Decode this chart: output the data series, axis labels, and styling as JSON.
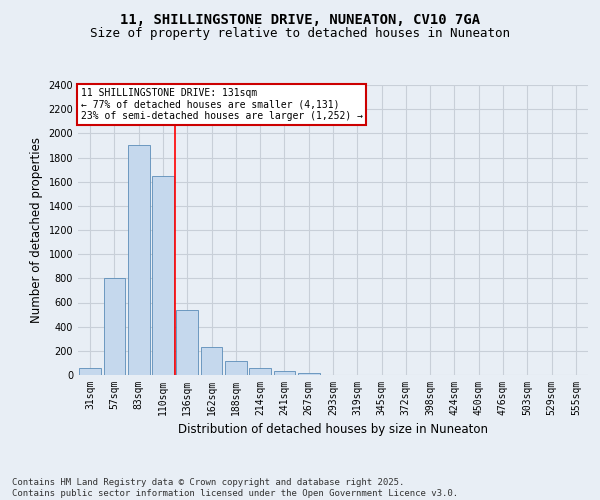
{
  "title_line1": "11, SHILLINGSTONE DRIVE, NUNEATON, CV10 7GA",
  "title_line2": "Size of property relative to detached houses in Nuneaton",
  "xlabel": "Distribution of detached houses by size in Nuneaton",
  "ylabel": "Number of detached properties",
  "footnote": "Contains HM Land Registry data © Crown copyright and database right 2025.\nContains public sector information licensed under the Open Government Licence v3.0.",
  "categories": [
    "31sqm",
    "57sqm",
    "83sqm",
    "110sqm",
    "136sqm",
    "162sqm",
    "188sqm",
    "214sqm",
    "241sqm",
    "267sqm",
    "293sqm",
    "319sqm",
    "345sqm",
    "372sqm",
    "398sqm",
    "424sqm",
    "450sqm",
    "476sqm",
    "503sqm",
    "529sqm",
    "555sqm"
  ],
  "values": [
    55,
    800,
    1900,
    1650,
    540,
    235,
    115,
    60,
    30,
    20,
    0,
    0,
    0,
    0,
    0,
    0,
    0,
    0,
    0,
    0,
    0
  ],
  "bar_color": "#c5d8ed",
  "bar_edge_color": "#5b8db8",
  "red_line_x": 3.5,
  "annotation_title": "11 SHILLINGSTONE DRIVE: 131sqm",
  "annotation_line2": "← 77% of detached houses are smaller (4,131)",
  "annotation_line3": "23% of semi-detached houses are larger (1,252) →",
  "annotation_box_color": "#ffffff",
  "annotation_box_edge": "#cc0000",
  "ylim": [
    0,
    2400
  ],
  "yticks": [
    0,
    200,
    400,
    600,
    800,
    1000,
    1200,
    1400,
    1600,
    1800,
    2000,
    2200,
    2400
  ],
  "grid_color": "#c8cfd8",
  "bg_color": "#e8eef5",
  "plot_bg_color": "#e8eef5",
  "title_fontsize": 10,
  "subtitle_fontsize": 9,
  "tick_fontsize": 7,
  "label_fontsize": 8.5,
  "footnote_fontsize": 6.5,
  "annot_fontsize": 7
}
